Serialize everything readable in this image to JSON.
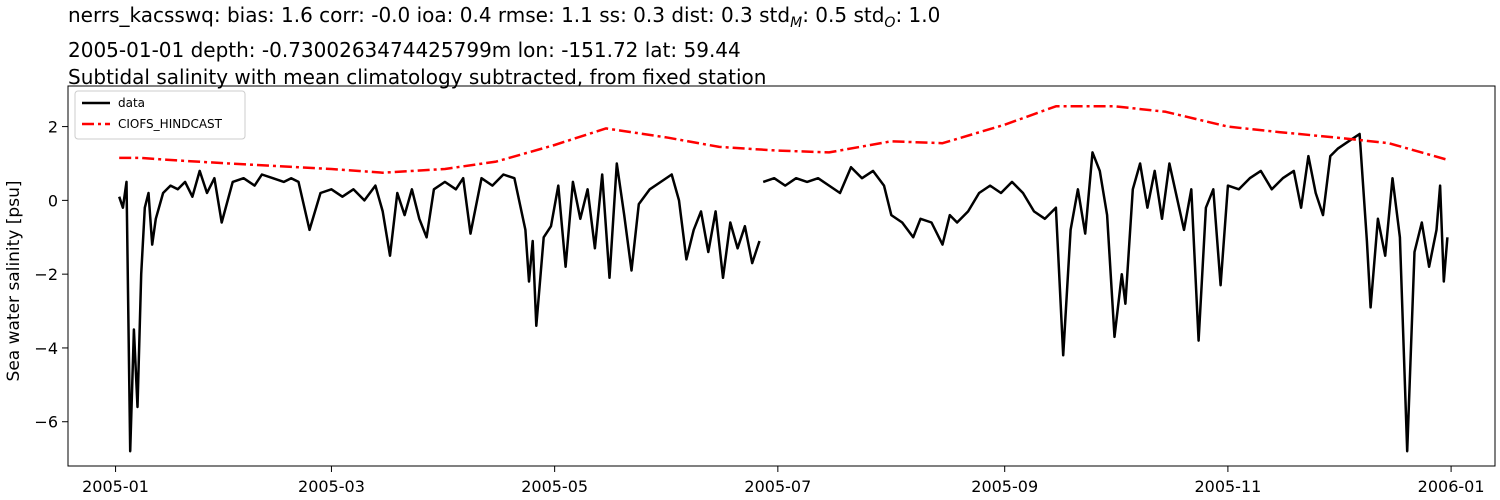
{
  "title": {
    "stats_prefix": "nerrs_kacsswq: bias: 1.6  corr: -0.0  ioa: 0.4  rmse: 1.1  ss: 0.3  dist: 0.3  std",
    "std_m_sub": "M",
    "std_mid": ": 0.5  std",
    "std_o_sub": "O",
    "std_o_val": ": 1.0",
    "line2": "2005-01-01 depth: -0.7300263474425799m lon: -151.72 lat: 59.44",
    "line3": "Subtidal salinity with mean climatology subtracted, from fixed station"
  },
  "chart_data": {
    "type": "line",
    "ylabel": "Sea water salinity [psu]",
    "xlabel": "",
    "ylim": [
      -7.2,
      3.1
    ],
    "xlim": [
      "2004-12-19",
      "2006-01-13"
    ],
    "xticks": [
      "2005-01",
      "2005-03",
      "2005-05",
      "2005-07",
      "2005-09",
      "2005-11",
      "2006-01"
    ],
    "yticks": [
      2,
      0,
      -2,
      -4,
      -6
    ],
    "ytick_labels": [
      "2",
      "0",
      "−2",
      "−4",
      "−6"
    ],
    "grid": false,
    "legend_placement": "upper-left",
    "series": [
      {
        "name": "data",
        "color": "#000000",
        "style": "solid",
        "points": [
          [
            "2005-01-02",
            0.1
          ],
          [
            "2005-01-03",
            -0.2
          ],
          [
            "2005-01-04",
            0.5
          ],
          [
            "2005-01-05",
            -6.8
          ],
          [
            "2005-01-06",
            -3.5
          ],
          [
            "2005-01-07",
            -5.6
          ],
          [
            "2005-01-08",
            -2.0
          ],
          [
            "2005-01-09",
            -0.2
          ],
          [
            "2005-01-10",
            0.2
          ],
          [
            "2005-01-11",
            -1.2
          ],
          [
            "2005-01-12",
            -0.5
          ],
          [
            "2005-01-14",
            0.2
          ],
          [
            "2005-01-16",
            0.4
          ],
          [
            "2005-01-18",
            0.3
          ],
          [
            "2005-01-20",
            0.5
          ],
          [
            "2005-01-22",
            0.1
          ],
          [
            "2005-01-24",
            0.8
          ],
          [
            "2005-01-26",
            0.2
          ],
          [
            "2005-01-28",
            0.6
          ],
          [
            "2005-01-30",
            -0.6
          ],
          [
            "2005-02-02",
            0.5
          ],
          [
            "2005-02-05",
            0.6
          ],
          [
            "2005-02-08",
            0.4
          ],
          [
            "2005-02-10",
            0.7
          ],
          [
            "2005-02-13",
            0.6
          ],
          [
            "2005-02-16",
            0.5
          ],
          [
            "2005-02-18",
            0.6
          ],
          [
            "2005-02-20",
            0.5
          ],
          [
            "2005-02-23",
            -0.8
          ],
          [
            "2005-02-26",
            0.2
          ],
          [
            "2005-03-01",
            0.3
          ],
          [
            "2005-03-04",
            0.1
          ],
          [
            "2005-03-07",
            0.3
          ],
          [
            "2005-03-10",
            0.0
          ],
          [
            "2005-03-13",
            0.4
          ],
          [
            "2005-03-15",
            -0.3
          ],
          [
            "2005-03-17",
            -1.5
          ],
          [
            "2005-03-19",
            0.2
          ],
          [
            "2005-03-21",
            -0.4
          ],
          [
            "2005-03-23",
            0.3
          ],
          [
            "2005-03-25",
            -0.5
          ],
          [
            "2005-03-27",
            -1.0
          ],
          [
            "2005-03-29",
            0.3
          ],
          [
            "2005-04-01",
            0.5
          ],
          [
            "2005-04-04",
            0.3
          ],
          [
            "2005-04-06",
            0.6
          ],
          [
            "2005-04-08",
            -0.9
          ],
          [
            "2005-04-11",
            0.6
          ],
          [
            "2005-04-14",
            0.4
          ],
          [
            "2005-04-17",
            0.7
          ],
          [
            "2005-04-20",
            0.6
          ],
          [
            "2005-04-23",
            -0.8
          ],
          [
            "2005-04-24",
            -2.2
          ],
          [
            "2005-04-25",
            -1.1
          ],
          [
            "2005-04-26",
            -3.4
          ],
          [
            "2005-04-28",
            -1.0
          ],
          [
            "2005-04-30",
            -0.7
          ],
          [
            "2005-05-02",
            0.4
          ],
          [
            "2005-05-04",
            -1.8
          ],
          [
            "2005-05-06",
            0.5
          ],
          [
            "2005-05-08",
            -0.5
          ],
          [
            "2005-05-10",
            0.3
          ],
          [
            "2005-05-12",
            -1.3
          ],
          [
            "2005-05-14",
            0.7
          ],
          [
            "2005-05-16",
            -2.1
          ],
          [
            "2005-05-18",
            1.0
          ],
          [
            "2005-05-20",
            -0.4
          ],
          [
            "2005-05-22",
            -1.9
          ],
          [
            "2005-05-24",
            -0.1
          ],
          [
            "2005-05-27",
            0.3
          ],
          [
            "2005-05-30",
            0.5
          ],
          [
            "2005-06-02",
            0.7
          ],
          [
            "2005-06-04",
            0.0
          ],
          [
            "2005-06-06",
            -1.6
          ],
          [
            "2005-06-08",
            -0.8
          ],
          [
            "2005-06-10",
            -0.3
          ],
          [
            "2005-06-12",
            -1.4
          ],
          [
            "2005-06-14",
            -0.3
          ],
          [
            "2005-06-16",
            -2.1
          ],
          [
            "2005-06-18",
            -0.6
          ],
          [
            "2005-06-20",
            -1.3
          ],
          [
            "2005-06-22",
            -0.7
          ],
          [
            "2005-06-24",
            -1.7
          ],
          [
            "2005-06-26",
            -1.1
          ],
          [
            "2005-06-27",
            null
          ],
          [
            "2005-06-27",
            0.5
          ],
          [
            "2005-06-30",
            0.6
          ],
          [
            "2005-07-03",
            0.4
          ],
          [
            "2005-07-06",
            0.6
          ],
          [
            "2005-07-09",
            0.5
          ],
          [
            "2005-07-12",
            0.6
          ],
          [
            "2005-07-15",
            0.4
          ],
          [
            "2005-07-18",
            0.2
          ],
          [
            "2005-07-21",
            0.9
          ],
          [
            "2005-07-24",
            0.6
          ],
          [
            "2005-07-27",
            0.8
          ],
          [
            "2005-07-30",
            0.4
          ],
          [
            "2005-08-01",
            -0.4
          ],
          [
            "2005-08-04",
            -0.6
          ],
          [
            "2005-08-07",
            -1.0
          ],
          [
            "2005-08-09",
            -0.5
          ],
          [
            "2005-08-12",
            -0.6
          ],
          [
            "2005-08-15",
            -1.2
          ],
          [
            "2005-08-17",
            -0.4
          ],
          [
            "2005-08-19",
            -0.6
          ],
          [
            "2005-08-22",
            -0.3
          ],
          [
            "2005-08-25",
            0.2
          ],
          [
            "2005-08-28",
            0.4
          ],
          [
            "2005-08-31",
            0.2
          ],
          [
            "2005-09-03",
            0.5
          ],
          [
            "2005-09-06",
            0.2
          ],
          [
            "2005-09-09",
            -0.3
          ],
          [
            "2005-09-12",
            -0.5
          ],
          [
            "2005-09-15",
            -0.2
          ],
          [
            "2005-09-17",
            -4.2
          ],
          [
            "2005-09-19",
            -0.8
          ],
          [
            "2005-09-21",
            0.3
          ],
          [
            "2005-09-23",
            -0.9
          ],
          [
            "2005-09-25",
            1.3
          ],
          [
            "2005-09-27",
            0.8
          ],
          [
            "2005-09-29",
            -0.4
          ],
          [
            "2005-10-01",
            -3.7
          ],
          [
            "2005-10-03",
            -2.0
          ],
          [
            "2005-10-04",
            -2.8
          ],
          [
            "2005-10-06",
            0.3
          ],
          [
            "2005-10-08",
            1.0
          ],
          [
            "2005-10-10",
            -0.2
          ],
          [
            "2005-10-12",
            0.8
          ],
          [
            "2005-10-14",
            -0.5
          ],
          [
            "2005-10-16",
            1.0
          ],
          [
            "2005-10-18",
            0.1
          ],
          [
            "2005-10-20",
            -0.8
          ],
          [
            "2005-10-22",
            0.3
          ],
          [
            "2005-10-24",
            -3.8
          ],
          [
            "2005-10-26",
            -0.2
          ],
          [
            "2005-10-28",
            0.3
          ],
          [
            "2005-10-30",
            -2.3
          ],
          [
            "2005-11-01",
            0.4
          ],
          [
            "2005-11-04",
            0.3
          ],
          [
            "2005-11-07",
            0.6
          ],
          [
            "2005-11-10",
            0.8
          ],
          [
            "2005-11-13",
            0.3
          ],
          [
            "2005-11-16",
            0.6
          ],
          [
            "2005-11-19",
            0.8
          ],
          [
            "2005-11-21",
            -0.2
          ],
          [
            "2005-11-23",
            1.2
          ],
          [
            "2005-11-25",
            0.2
          ],
          [
            "2005-11-27",
            -0.4
          ],
          [
            "2005-11-29",
            1.2
          ],
          [
            "2005-12-01",
            1.4
          ],
          [
            "2005-12-04",
            1.6
          ],
          [
            "2005-12-07",
            1.8
          ],
          [
            "2005-12-09",
            -1.1
          ],
          [
            "2005-12-10",
            -2.9
          ],
          [
            "2005-12-12",
            -0.5
          ],
          [
            "2005-12-14",
            -1.5
          ],
          [
            "2005-12-16",
            0.6
          ],
          [
            "2005-12-18",
            -1.0
          ],
          [
            "2005-12-20",
            -6.8
          ],
          [
            "2005-12-22",
            -1.4
          ],
          [
            "2005-12-24",
            -0.6
          ],
          [
            "2005-12-26",
            -1.8
          ],
          [
            "2005-12-28",
            -0.8
          ],
          [
            "2005-12-29",
            0.4
          ],
          [
            "2005-12-30",
            -2.2
          ],
          [
            "2005-12-31",
            -1.0
          ]
        ]
      },
      {
        "name": "CIOFS_HINDCAST",
        "color": "#ff0000",
        "style": "dashdot",
        "points": [
          [
            "2005-01-02",
            1.15
          ],
          [
            "2005-01-08",
            1.15
          ],
          [
            "2005-01-15",
            1.1
          ],
          [
            "2005-02-01",
            1.0
          ],
          [
            "2005-03-01",
            0.85
          ],
          [
            "2005-03-15",
            0.75
          ],
          [
            "2005-04-01",
            0.85
          ],
          [
            "2005-04-15",
            1.05
          ],
          [
            "2005-05-01",
            1.5
          ],
          [
            "2005-05-15",
            1.95
          ],
          [
            "2005-06-01",
            1.7
          ],
          [
            "2005-06-15",
            1.45
          ],
          [
            "2005-07-01",
            1.35
          ],
          [
            "2005-07-15",
            1.3
          ],
          [
            "2005-08-01",
            1.6
          ],
          [
            "2005-08-15",
            1.55
          ],
          [
            "2005-09-01",
            2.05
          ],
          [
            "2005-09-15",
            2.55
          ],
          [
            "2005-10-01",
            2.55
          ],
          [
            "2005-10-15",
            2.4
          ],
          [
            "2005-11-01",
            2.0
          ],
          [
            "2005-11-15",
            1.85
          ],
          [
            "2005-12-01",
            1.7
          ],
          [
            "2005-12-15",
            1.55
          ],
          [
            "2005-12-31",
            1.1
          ]
        ]
      }
    ]
  }
}
